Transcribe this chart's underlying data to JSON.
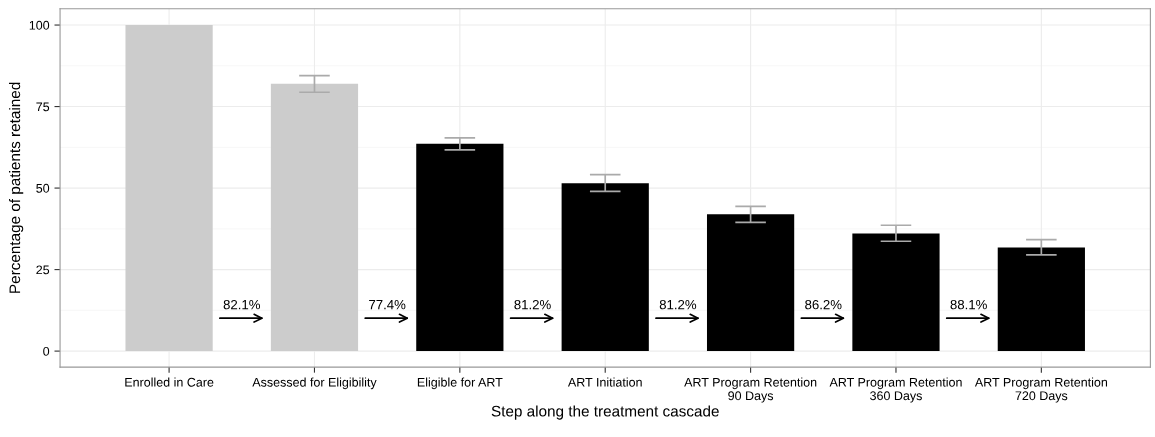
{
  "chart_data": {
    "type": "bar",
    "xlabel": "Step along the treatment cascade",
    "ylabel": "Percentage of patients retained",
    "categories": [
      "Enrolled in Care",
      "Assessed for Eligibility",
      "Eligible for ART",
      "ART Initiation",
      "ART Program Retention\n90 Days",
      "ART Program Retention\n360 Days",
      "ART Program Retention\n720 Days"
    ],
    "values": [
      100,
      82.0,
      63.6,
      51.5,
      42.0,
      36.1,
      31.8
    ],
    "colors": [
      "#cccccc",
      "#cccccc",
      "#000000",
      "#000000",
      "#000000",
      "#000000",
      "#000000"
    ],
    "errors": [
      null,
      [
        79.4,
        84.5
      ],
      [
        61.7,
        65.4
      ],
      [
        49.0,
        54.1
      ],
      [
        39.5,
        44.4
      ],
      [
        33.7,
        38.6
      ],
      [
        29.5,
        34.2
      ]
    ],
    "annotations": [
      "82.1%",
      "77.4%",
      "81.2%",
      "81.2%",
      "86.2%",
      "88.1%"
    ],
    "ylim": [
      -4.9,
      105
    ],
    "yticks": [
      0,
      25,
      50,
      75,
      100
    ],
    "grid": true
  }
}
